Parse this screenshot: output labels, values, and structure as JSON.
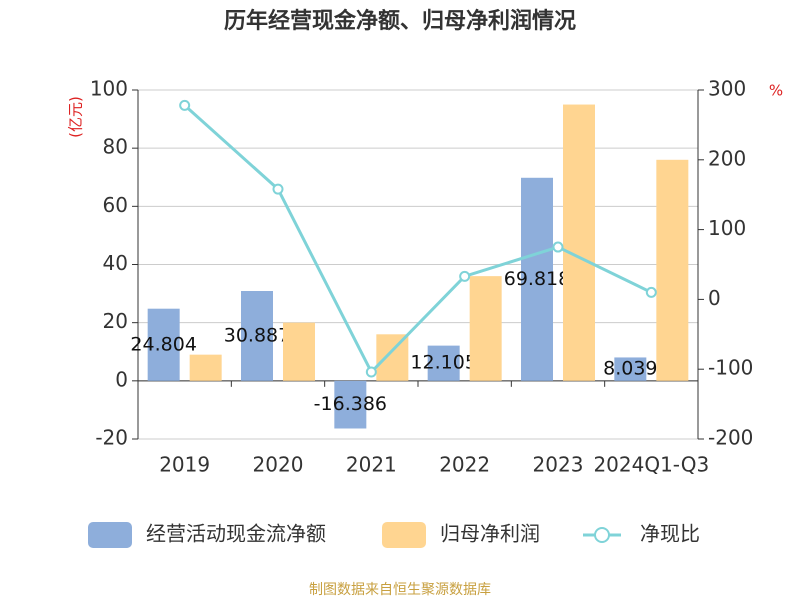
{
  "chart_data": {
    "type": "bar",
    "title": "历年经营现金净额、归母净利润情况",
    "y_label": "(亿元)",
    "y2_label": "%",
    "source": "制图数据来自恒生聚源数据库",
    "categories": [
      "2019",
      "2020",
      "2021",
      "2022",
      "2023",
      "2024Q1-Q3"
    ],
    "series": [
      {
        "name": "经营活动现金流净额",
        "type": "bar",
        "color": "#8eaedb",
        "values": [
          24.804,
          30.887,
          -16.386,
          12.105,
          69.818,
          8.039
        ],
        "show_labels": true
      },
      {
        "name": "归母净利润",
        "type": "bar",
        "color": "#ffd591",
        "values": [
          9,
          20,
          16,
          36,
          95,
          76
        ]
      },
      {
        "name": "净现比",
        "type": "line",
        "axis": "y2",
        "color": "#7fd3d8",
        "values": [
          278,
          158,
          -104,
          33,
          75,
          10
        ]
      }
    ],
    "ylim": [
      -20,
      100
    ],
    "yticks": [
      -20,
      0,
      20,
      40,
      60,
      80,
      100
    ],
    "y2lim": [
      -200,
      300
    ],
    "y2ticks": [
      -200,
      -100,
      0,
      100,
      200,
      300
    ],
    "grid": true
  }
}
